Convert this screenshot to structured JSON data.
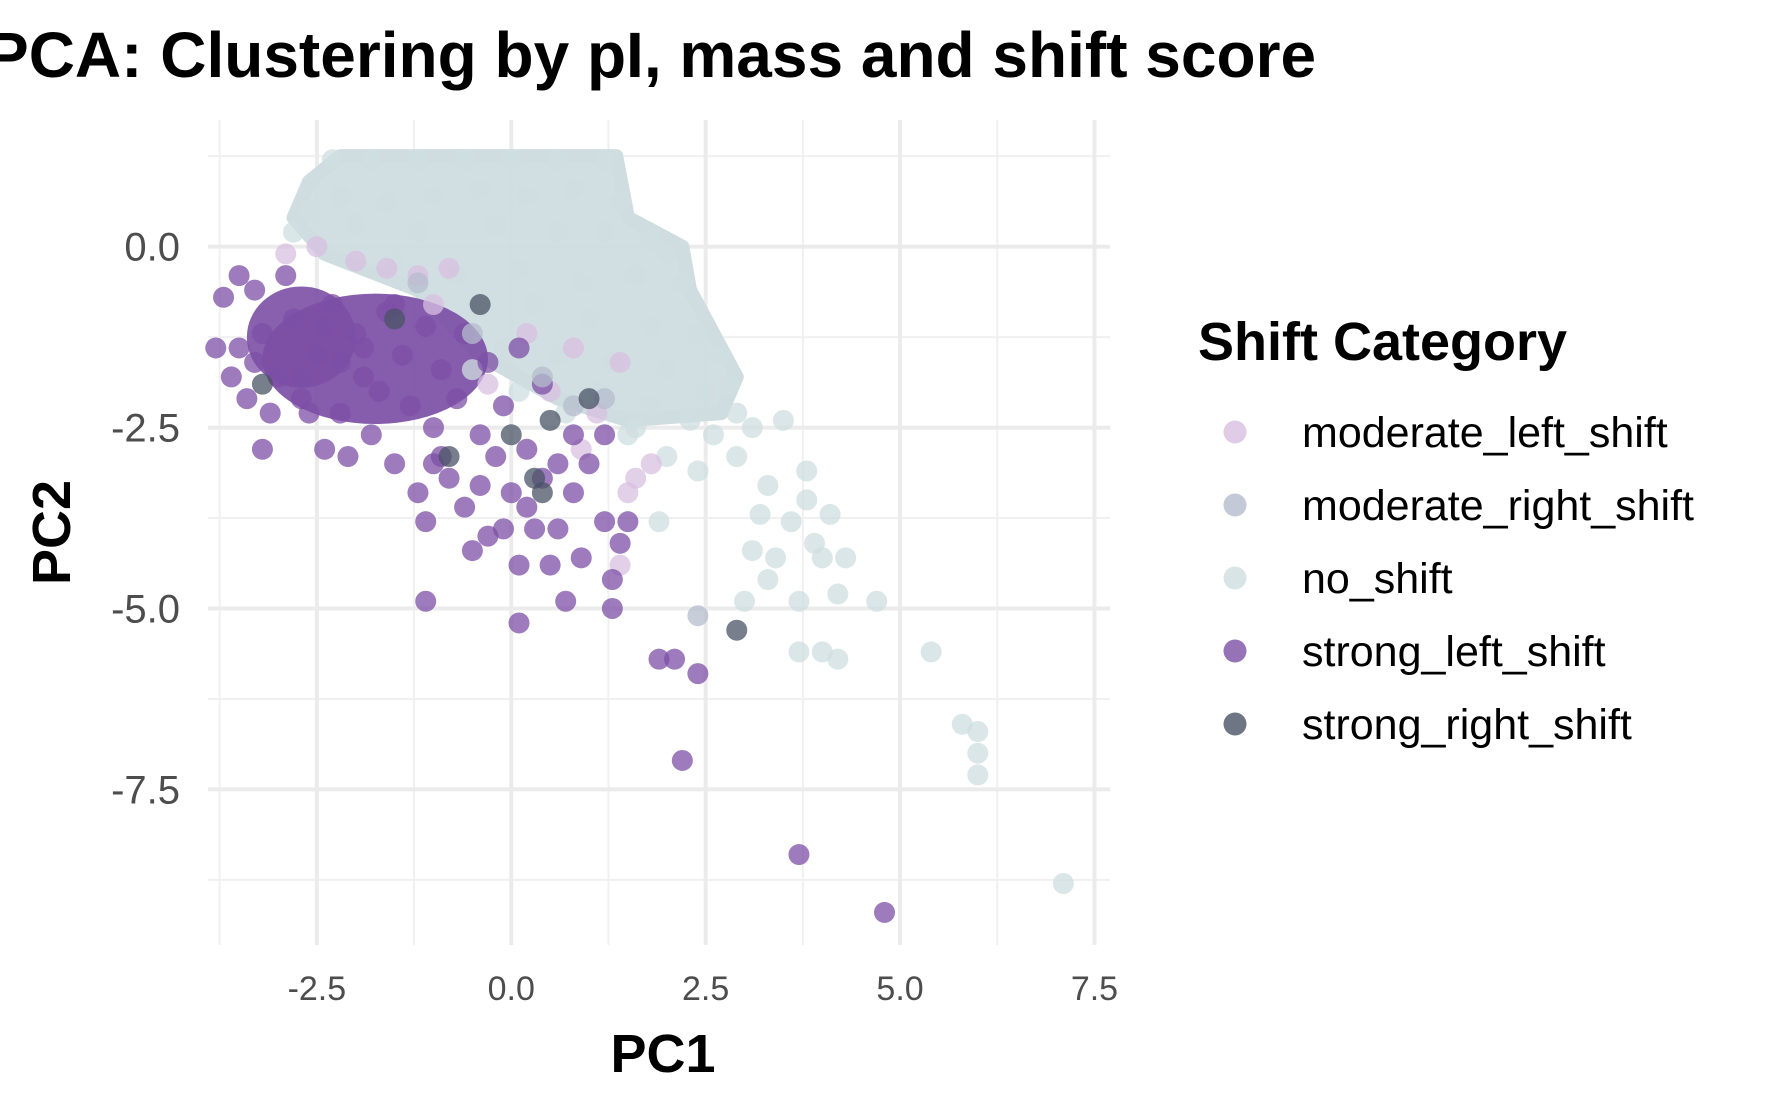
{
  "chart_data": {
    "type": "scatter",
    "title": "PCA: Clustering by pI, mass and shift score",
    "xlabel": "PC1",
    "ylabel": "PC2",
    "xlim": [
      -3.9,
      7.7
    ],
    "ylim": [
      -9.65,
      1.75
    ],
    "x_ticks": [
      -2.5,
      0.0,
      2.5,
      5.0,
      7.5
    ],
    "x_tick_labels": [
      "-2.5",
      "0.0",
      "2.5",
      "5.0",
      "7.5"
    ],
    "y_ticks": [
      0.0,
      -2.5,
      -5.0,
      -7.5
    ],
    "y_tick_labels": [
      "0.0",
      "-2.5",
      "-5.0",
      "-7.5"
    ],
    "grid": true,
    "legend_title": "Shift Category",
    "legend_position": "right",
    "series": [
      {
        "name": "no_shift",
        "color": "#cfdde0",
        "points": [
          [
            -2.3,
            1.2
          ],
          [
            -1.8,
            1.2
          ],
          [
            -1.2,
            1.2
          ],
          [
            -0.6,
            1.2
          ],
          [
            0.0,
            1.2
          ],
          [
            0.6,
            1.2
          ],
          [
            1.2,
            1.2
          ],
          [
            -2.6,
            0.5
          ],
          [
            -2.2,
            0.7
          ],
          [
            -1.6,
            0.6
          ],
          [
            -1.0,
            0.7
          ],
          [
            -0.4,
            0.8
          ],
          [
            0.2,
            0.7
          ],
          [
            0.8,
            0.8
          ],
          [
            1.4,
            0.6
          ],
          [
            -2.8,
            0.2
          ],
          [
            -2.0,
            0.3
          ],
          [
            -1.2,
            0.2
          ],
          [
            -0.2,
            0.3
          ],
          [
            0.6,
            0.2
          ],
          [
            1.2,
            0.2
          ],
          [
            1.8,
            0.1
          ],
          [
            2.0,
            -0.1
          ],
          [
            -1.5,
            -0.2
          ],
          [
            -0.7,
            -0.4
          ],
          [
            0.1,
            -0.3
          ],
          [
            0.9,
            -0.5
          ],
          [
            1.6,
            -0.4
          ],
          [
            2.2,
            -0.5
          ],
          [
            -0.5,
            -0.9
          ],
          [
            0.3,
            -0.8
          ],
          [
            1.0,
            -1.0
          ],
          [
            1.8,
            -1.1
          ],
          [
            2.4,
            -1.2
          ],
          [
            2.7,
            -1.5
          ],
          [
            2.8,
            -1.9
          ],
          [
            -0.1,
            -1.4
          ],
          [
            0.6,
            -1.5
          ],
          [
            1.3,
            -1.6
          ],
          [
            2.0,
            -1.7
          ],
          [
            2.5,
            -2.0
          ],
          [
            2.9,
            -2.3
          ],
          [
            1.1,
            -2.0
          ],
          [
            1.8,
            -2.2
          ],
          [
            2.3,
            -2.4
          ],
          [
            1.5,
            -2.6
          ],
          [
            2.0,
            -2.9
          ],
          [
            2.4,
            -3.1
          ],
          [
            1.9,
            -3.8
          ],
          [
            2.6,
            -2.6
          ],
          [
            2.9,
            -2.9
          ],
          [
            3.1,
            -2.5
          ],
          [
            3.3,
            -3.3
          ],
          [
            3.5,
            -2.4
          ],
          [
            3.2,
            -3.7
          ],
          [
            3.4,
            -4.3
          ],
          [
            3.1,
            -4.2
          ],
          [
            3.3,
            -4.6
          ],
          [
            3.6,
            -3.8
          ],
          [
            3.8,
            -3.1
          ],
          [
            3.8,
            -3.5
          ],
          [
            3.9,
            -4.1
          ],
          [
            4.0,
            -4.3
          ],
          [
            4.1,
            -3.7
          ],
          [
            4.3,
            -4.3
          ],
          [
            3.7,
            -4.9
          ],
          [
            4.2,
            -4.8
          ],
          [
            3.0,
            -4.9
          ],
          [
            4.7,
            -4.9
          ],
          [
            3.7,
            -5.6
          ],
          [
            4.0,
            -5.6
          ],
          [
            4.2,
            -5.7
          ],
          [
            5.4,
            -5.6
          ],
          [
            5.8,
            -6.6
          ],
          [
            6.0,
            -6.7
          ],
          [
            6.0,
            -7.0
          ],
          [
            6.0,
            -7.3
          ],
          [
            7.1,
            -8.8
          ],
          [
            -0.5,
            -1.7
          ],
          [
            0.1,
            -2.0
          ],
          [
            0.7,
            -2.3
          ],
          [
            1.6,
            -2.5
          ]
        ]
      },
      {
        "name": "moderate_left_shift",
        "color": "#d8bfe0",
        "points": [
          [
            -2.9,
            -0.1
          ],
          [
            -2.5,
            0.0
          ],
          [
            -2.0,
            -0.2
          ],
          [
            -1.6,
            -0.3
          ],
          [
            -1.2,
            -0.4
          ],
          [
            -0.8,
            -0.3
          ],
          [
            -1.0,
            -0.8
          ],
          [
            0.2,
            -1.2
          ],
          [
            0.8,
            -1.4
          ],
          [
            1.4,
            -1.6
          ],
          [
            0.5,
            -2.0
          ],
          [
            1.1,
            -2.3
          ],
          [
            1.6,
            -3.2
          ],
          [
            1.8,
            -3.0
          ],
          [
            1.5,
            -3.4
          ],
          [
            1.4,
            -4.4
          ],
          [
            -0.3,
            -1.9
          ],
          [
            0.9,
            -2.8
          ]
        ]
      },
      {
        "name": "moderate_right_shift",
        "color": "#b5bccd",
        "points": [
          [
            -1.2,
            -0.5
          ],
          [
            -0.5,
            -1.2
          ],
          [
            0.4,
            -1.8
          ],
          [
            2.4,
            -5.1
          ],
          [
            0.8,
            -2.2
          ],
          [
            1.2,
            -2.1
          ]
        ]
      },
      {
        "name": "strong_left_shift",
        "color": "#7c4fa5",
        "points": [
          [
            -3.5,
            -1.4
          ],
          [
            -3.3,
            -1.6
          ],
          [
            -3.2,
            -1.2
          ],
          [
            -3.0,
            -1.8
          ],
          [
            -2.8,
            -1.0
          ],
          [
            -2.7,
            -2.1
          ],
          [
            -2.5,
            -1.5
          ],
          [
            -2.3,
            -0.8
          ],
          [
            -2.2,
            -2.3
          ],
          [
            -2.0,
            -1.2
          ],
          [
            -1.9,
            -1.8
          ],
          [
            -1.7,
            -2.0
          ],
          [
            -1.6,
            -0.9
          ],
          [
            -1.4,
            -1.5
          ],
          [
            -1.3,
            -2.2
          ],
          [
            -1.1,
            -1.1
          ],
          [
            -1.0,
            -2.5
          ],
          [
            -0.9,
            -1.7
          ],
          [
            -0.7,
            -2.1
          ],
          [
            -0.6,
            -1.2
          ],
          [
            -0.4,
            -2.6
          ],
          [
            -0.3,
            -1.6
          ],
          [
            -0.1,
            -2.2
          ],
          [
            0.1,
            -1.4
          ],
          [
            0.2,
            -2.8
          ],
          [
            0.4,
            -1.9
          ],
          [
            -3.3,
            -0.6
          ],
          [
            -3.4,
            -2.1
          ],
          [
            -3.1,
            -2.3
          ],
          [
            -2.9,
            -0.4
          ],
          [
            -2.6,
            -2.3
          ],
          [
            -2.4,
            -2.8
          ],
          [
            -2.1,
            -2.9
          ],
          [
            -1.8,
            -2.6
          ],
          [
            -1.5,
            -3.0
          ],
          [
            -1.2,
            -3.4
          ],
          [
            -1.0,
            -3.0
          ],
          [
            -0.8,
            -3.2
          ],
          [
            -0.6,
            -3.6
          ],
          [
            -0.4,
            -3.3
          ],
          [
            -0.2,
            -2.9
          ],
          [
            0.0,
            -3.4
          ],
          [
            0.2,
            -3.6
          ],
          [
            0.4,
            -3.2
          ],
          [
            0.6,
            -3.0
          ],
          [
            0.8,
            -3.4
          ],
          [
            1.0,
            -3.0
          ],
          [
            -1.1,
            -3.8
          ],
          [
            -1.1,
            -4.9
          ],
          [
            -0.5,
            -4.2
          ],
          [
            -0.3,
            -4.0
          ],
          [
            -0.1,
            -3.9
          ],
          [
            0.1,
            -4.4
          ],
          [
            0.3,
            -3.9
          ],
          [
            0.5,
            -4.4
          ],
          [
            0.6,
            -3.9
          ],
          [
            0.7,
            -4.9
          ],
          [
            0.9,
            -4.3
          ],
          [
            1.2,
            -3.8
          ],
          [
            1.3,
            -4.6
          ],
          [
            1.3,
            -5.0
          ],
          [
            1.4,
            -4.1
          ],
          [
            1.5,
            -3.8
          ],
          [
            0.1,
            -5.2
          ],
          [
            -3.2,
            -2.8
          ],
          [
            -3.6,
            -1.8
          ],
          [
            -3.7,
            -0.7
          ],
          [
            -3.8,
            -1.4
          ],
          [
            -3.5,
            -0.4
          ],
          [
            1.9,
            -5.7
          ],
          [
            2.1,
            -5.7
          ],
          [
            2.4,
            -5.9
          ],
          [
            2.2,
            -7.1
          ],
          [
            3.7,
            -8.4
          ],
          [
            4.8,
            -9.2
          ],
          [
            -1.5,
            -0.8
          ],
          [
            -0.9,
            -2.9
          ],
          [
            0.8,
            -2.6
          ],
          [
            1.2,
            -2.6
          ],
          [
            -2.4,
            -1.1
          ],
          [
            -1.9,
            -1.4
          ],
          [
            -2.7,
            -1.8
          ],
          [
            -2.2,
            -1.6
          ]
        ]
      },
      {
        "name": "strong_right_shift",
        "color": "#4a5366",
        "points": [
          [
            -3.2,
            -1.9
          ],
          [
            -1.5,
            -1.0
          ],
          [
            -0.8,
            -2.9
          ],
          [
            -0.4,
            -0.8
          ],
          [
            0.0,
            -2.6
          ],
          [
            0.3,
            -3.2
          ],
          [
            0.4,
            -3.4
          ],
          [
            1.0,
            -2.1
          ],
          [
            2.9,
            -5.3
          ],
          [
            0.5,
            -2.4
          ]
        ]
      }
    ]
  }
}
